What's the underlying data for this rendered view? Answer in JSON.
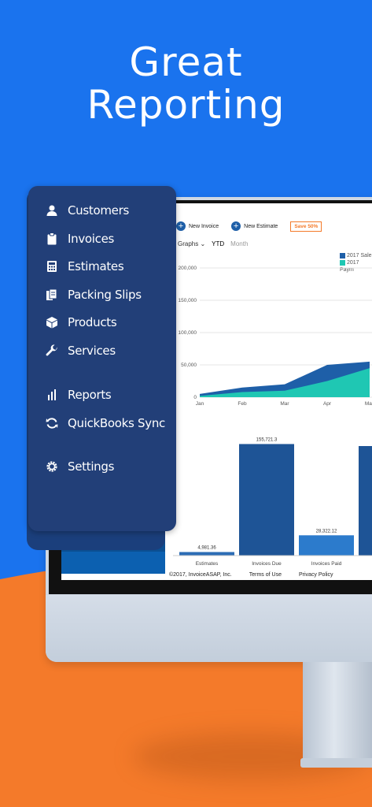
{
  "headline": {
    "line1": "Great",
    "line2": "Reporting"
  },
  "colors": {
    "blue": "#1a73ee",
    "orange": "#f47a2a",
    "sidebar": "#223f78",
    "sales": "#1e5fa8",
    "payments": "#1fc7b3"
  },
  "sidebar": {
    "items": [
      {
        "label": "Customers",
        "icon": "person-icon"
      },
      {
        "label": "Invoices",
        "icon": "clipboard-icon"
      },
      {
        "label": "Estimates",
        "icon": "calculator-icon"
      },
      {
        "label": "Packing Slips",
        "icon": "packing-slips-icon"
      },
      {
        "label": "Products",
        "icon": "box-icon"
      },
      {
        "label": "Services",
        "icon": "wrench-icon"
      },
      {
        "label": "Reports",
        "icon": "bar-chart-icon"
      },
      {
        "label": "QuickBooks Sync",
        "icon": "sync-icon"
      },
      {
        "label": "Settings",
        "icon": "gear-icon"
      }
    ]
  },
  "toolbar": {
    "new_invoice": "New Invoice",
    "new_estimate": "New Estimate",
    "save": "Save 50%"
  },
  "tabs": {
    "graphs": "Graphs",
    "ytd": "YTD",
    "month": "Month"
  },
  "legend": {
    "sales": "2017 Sale",
    "payments": "2017 Paym"
  },
  "chart_data": [
    {
      "type": "area",
      "categories": [
        "Jan",
        "Feb",
        "Mar",
        "Apr",
        "May"
      ],
      "series": [
        {
          "name": "2017 Sale",
          "values": [
            5000,
            15000,
            20000,
            50000,
            55000
          ]
        },
        {
          "name": "2017 Paym",
          "values": [
            2000,
            8000,
            10000,
            25000,
            45000
          ]
        }
      ],
      "yticks": [
        "0",
        "50,000",
        "100,000",
        "150,000",
        "200,000"
      ],
      "ylim": [
        0,
        200000
      ]
    },
    {
      "type": "bar",
      "categories": [
        "Estimates",
        "Invoices Due",
        "Invoices Paid"
      ],
      "values": [
        4981.36,
        155721.3,
        28322.12
      ],
      "labels": [
        "4,981.36",
        "155,721.3",
        "28,322.12"
      ],
      "ylim": [
        0,
        165000
      ]
    }
  ],
  "footer": {
    "copyright": "©2017, InvoiceASAP, Inc.",
    "terms": "Terms of Use",
    "privacy": "Privacy Policy"
  }
}
